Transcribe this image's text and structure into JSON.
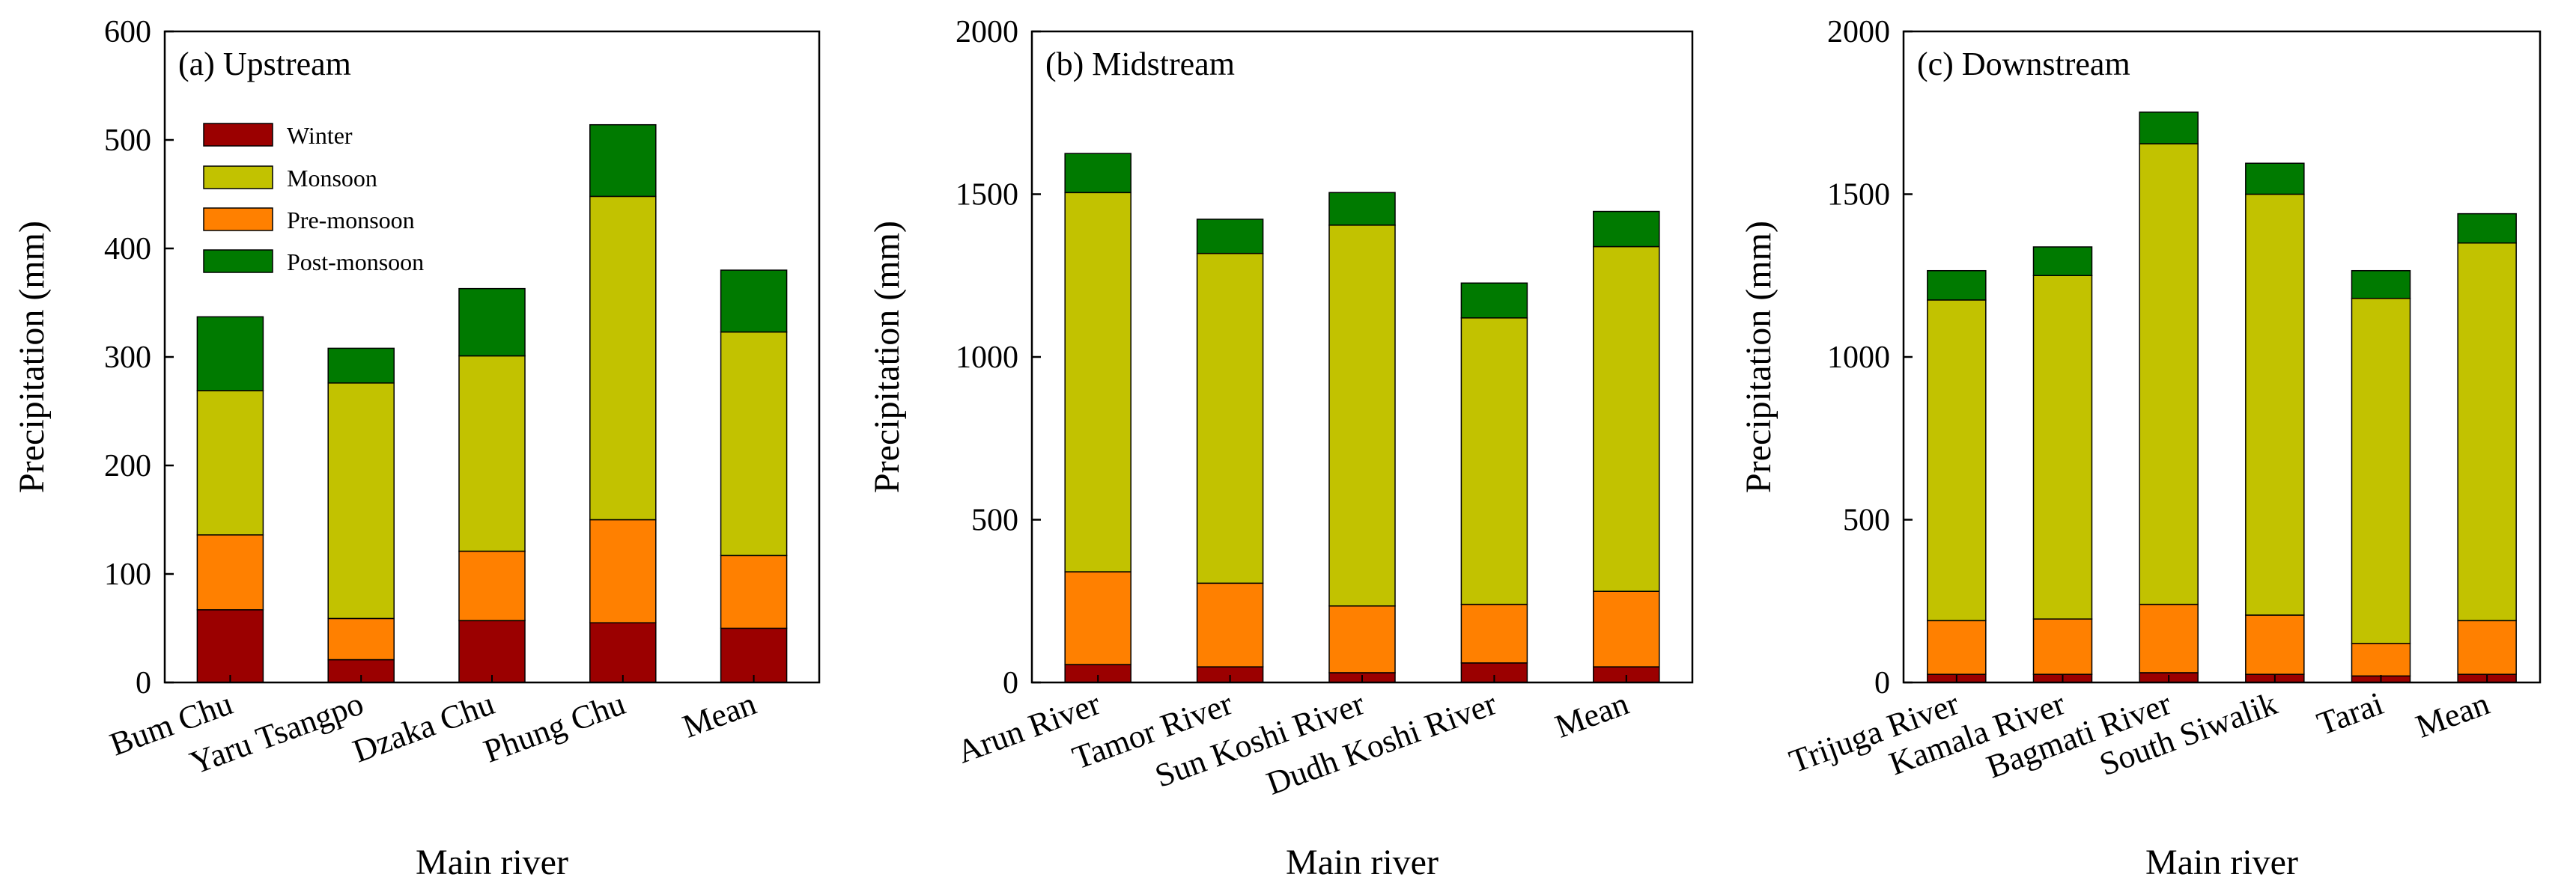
{
  "colors": {
    "Winter": "#9b0000",
    "Monsoon": "#c2c200",
    "Pre-monsoon": "#ff8000",
    "Post-monsoon": "#007a00"
  },
  "legend": [
    "Winter",
    "Monsoon",
    "Pre-monsoon",
    "Post-monsoon"
  ],
  "chart_data": [
    {
      "type": "bar",
      "stacked": true,
      "title": "(a) Upstream",
      "xlabel": "Main river",
      "ylabel": "Precipitation (mm)",
      "ylim": [
        0,
        600
      ],
      "yticks": [
        0,
        100,
        200,
        300,
        400,
        500,
        600
      ],
      "categories": [
        "Bum Chu",
        "Yaru Tsangpo",
        "Dzaka Chu",
        "Phung Chu",
        "Mean"
      ],
      "series": [
        {
          "name": "Winter",
          "values": [
            67,
            21,
            57,
            55,
            50
          ]
        },
        {
          "name": "Pre-monsoon",
          "values": [
            69,
            38,
            64,
            95,
            67
          ]
        },
        {
          "name": "Monsoon",
          "values": [
            133,
            217,
            180,
            298,
            206
          ]
        },
        {
          "name": "Post-monsoon",
          "values": [
            68,
            32,
            62,
            66,
            57
          ]
        }
      ]
    },
    {
      "type": "bar",
      "stacked": true,
      "title": "(b) Midstream",
      "xlabel": "Main river",
      "ylabel": "Precipitation (mm)",
      "ylim": [
        0,
        2000
      ],
      "yticks": [
        0,
        500,
        1000,
        1500,
        2000
      ],
      "categories": [
        "Arun River",
        "Tamor River",
        "Sun Koshi River",
        "Dudh Koshi River",
        "Mean"
      ],
      "series": [
        {
          "name": "Winter",
          "values": [
            55,
            48,
            30,
            60,
            48
          ]
        },
        {
          "name": "Pre-monsoon",
          "values": [
            285,
            257,
            205,
            180,
            232
          ]
        },
        {
          "name": "Monsoon",
          "values": [
            1165,
            1013,
            1170,
            880,
            1059
          ]
        },
        {
          "name": "Post-monsoon",
          "values": [
            120,
            105,
            100,
            107,
            108
          ]
        }
      ]
    },
    {
      "type": "bar",
      "stacked": true,
      "title": "(c) Downstream",
      "xlabel": "Main river",
      "ylabel": "Precipitation (mm)",
      "ylim": [
        0,
        2000
      ],
      "yticks": [
        0,
        500,
        1000,
        1500,
        2000
      ],
      "categories": [
        "Trijuga River",
        "Kamala River",
        "Bagmati River",
        "South Siwalik",
        "Tarai",
        "Mean"
      ],
      "series": [
        {
          "name": "Winter",
          "values": [
            25,
            25,
            30,
            25,
            20,
            25
          ]
        },
        {
          "name": "Pre-monsoon",
          "values": [
            165,
            170,
            210,
            182,
            100,
            165
          ]
        },
        {
          "name": "Monsoon",
          "values": [
            985,
            1055,
            1415,
            1293,
            1060,
            1160
          ]
        },
        {
          "name": "Post-monsoon",
          "values": [
            90,
            88,
            97,
            95,
            85,
            90
          ]
        }
      ]
    }
  ]
}
